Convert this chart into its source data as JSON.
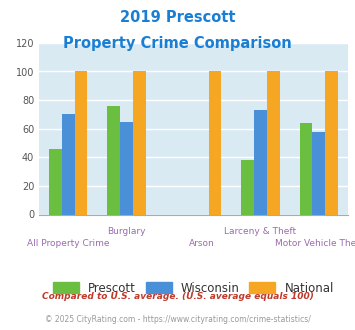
{
  "title_line1": "2019 Prescott",
  "title_line2": "Property Crime Comparison",
  "title_color": "#1a7fd4",
  "prescott": [
    46,
    76,
    0,
    38,
    64
  ],
  "wisconsin": [
    70,
    65,
    0,
    73,
    58
  ],
  "national": [
    100,
    100,
    100,
    100,
    100
  ],
  "prescott_color": "#6abf40",
  "wisconsin_color": "#4a90d9",
  "national_color": "#f5a623",
  "xlabels_color": "#9b6baf",
  "ylim": [
    0,
    120
  ],
  "yticks": [
    0,
    20,
    40,
    60,
    80,
    100,
    120
  ],
  "plot_bg": "#daeaf3",
  "grid_color": "#ffffff",
  "legend_labels": [
    "Prescott",
    "Wisconsin",
    "National"
  ],
  "cat_labels_top": [
    "",
    "Burglary",
    "",
    "Larceny & Theft",
    ""
  ],
  "cat_labels_bot": [
    "All Property Crime",
    "",
    "Arson",
    "",
    "Motor Vehicle Theft"
  ],
  "footnote1": "Compared to U.S. average. (U.S. average equals 100)",
  "footnote2": "© 2025 CityRating.com - https://www.cityrating.com/crime-statistics/",
  "footnote1_color": "#c0392b",
  "footnote2_color": "#999999",
  "footnote2_url_color": "#4a90d9"
}
